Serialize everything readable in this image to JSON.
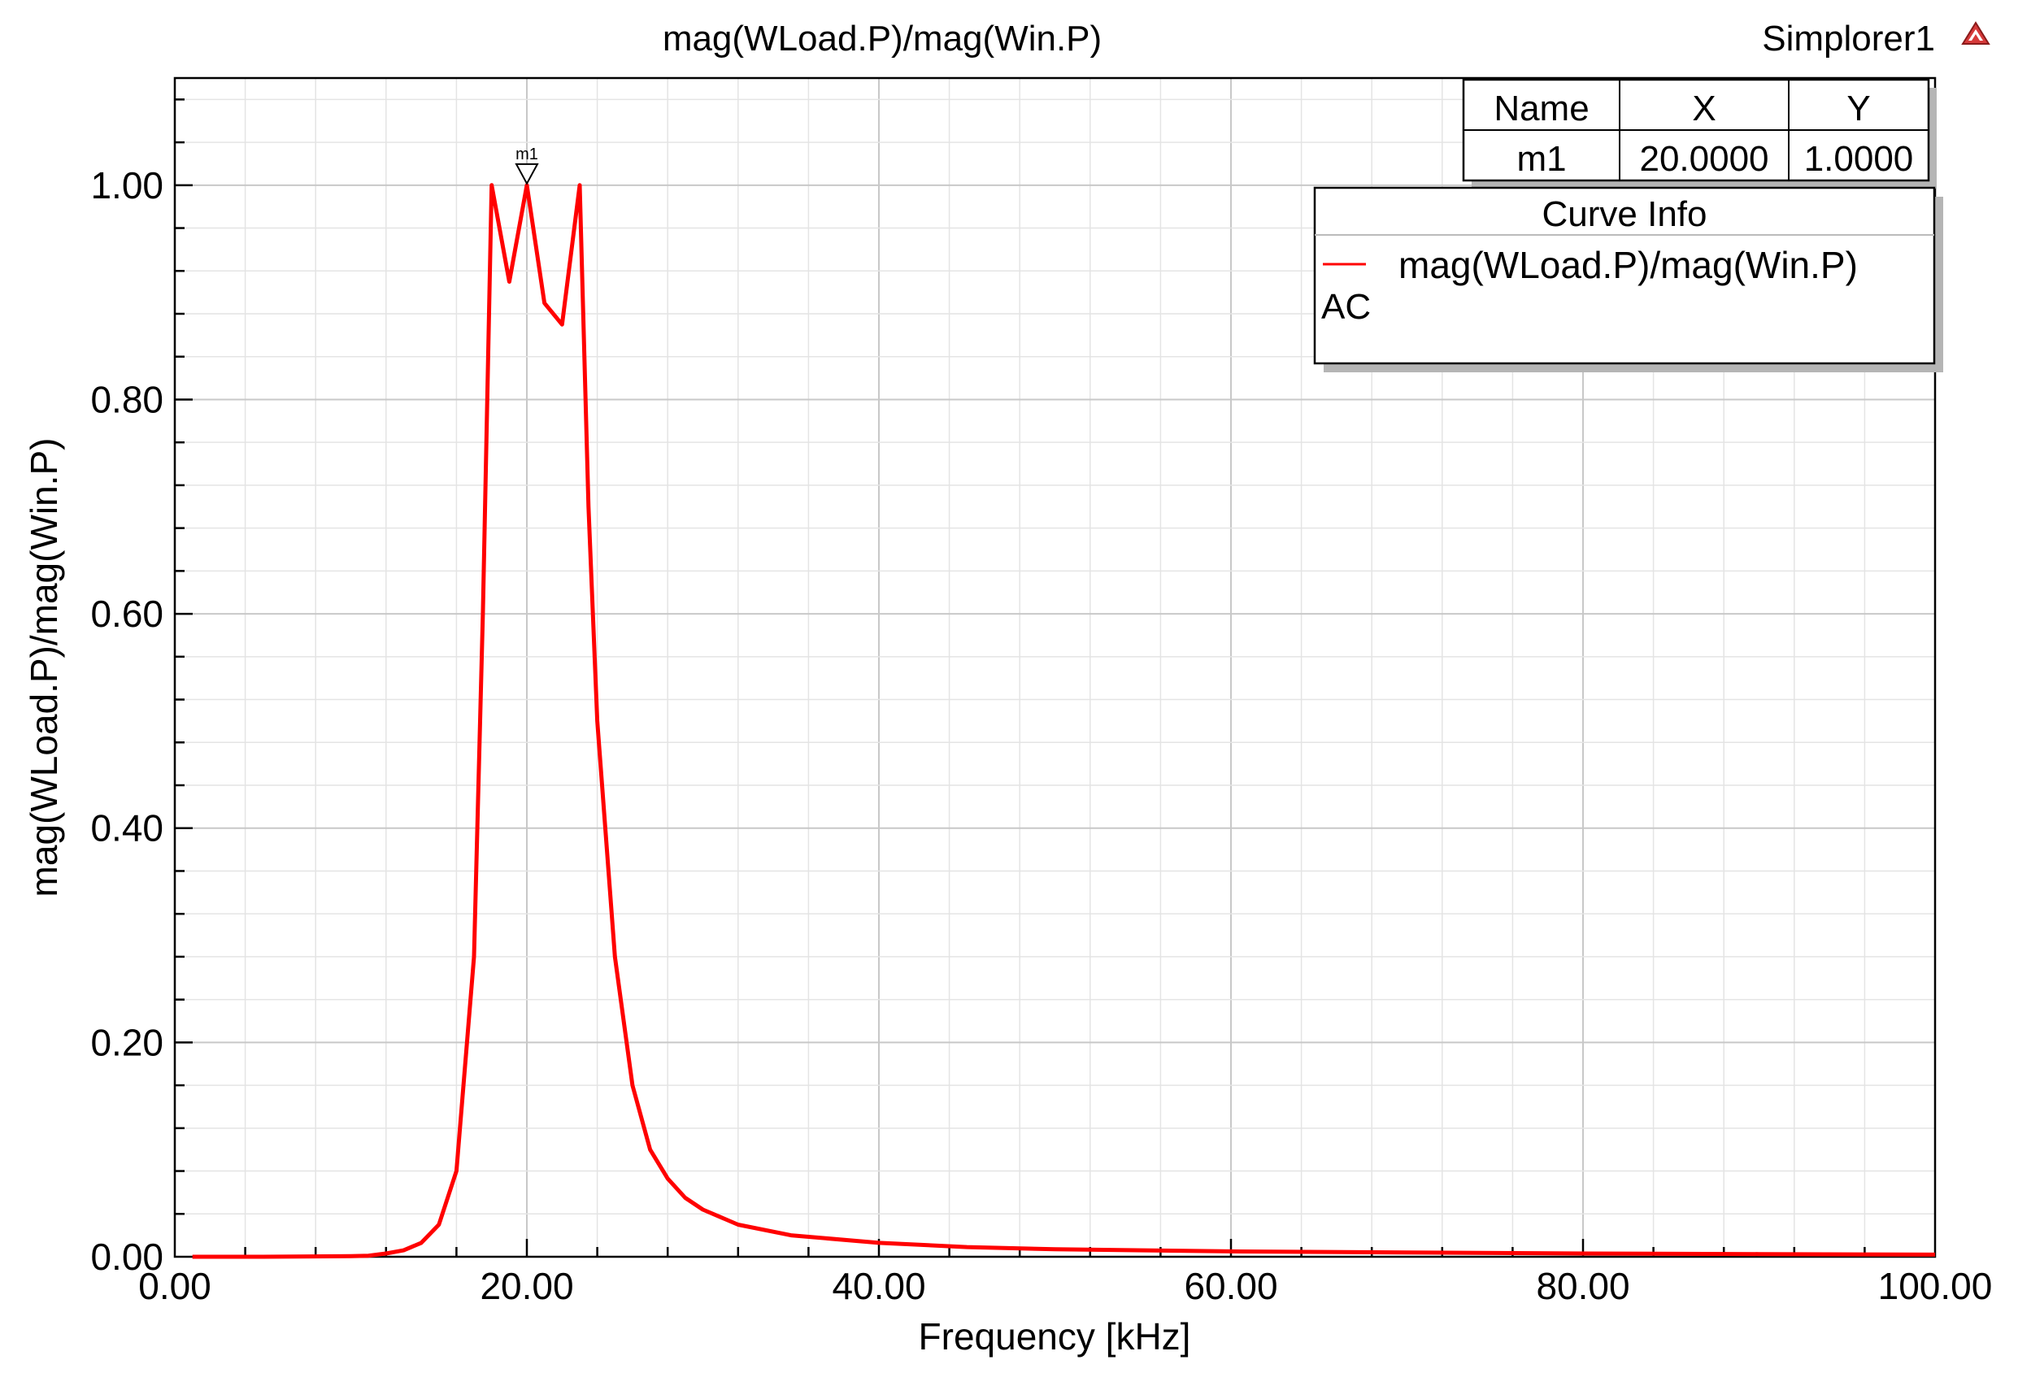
{
  "header": {
    "title": "mag(WLoad.P)/mag(Win.P)",
    "design_name": "Simplorer1",
    "design_icon": "warning-triangle-icon"
  },
  "marker_table": {
    "headers": [
      "Name",
      "X",
      "Y"
    ],
    "rows": [
      [
        "m1",
        "20.0000",
        "1.0000"
      ]
    ]
  },
  "legend": {
    "title": "Curve Info",
    "entries": [
      {
        "label": "mag(WLoad.P)/mag(Win.P)",
        "sub": "AC",
        "color": "#ff0000"
      }
    ]
  },
  "marker": {
    "label": "m1",
    "x": 20,
    "y": 1.0
  },
  "chart_data": {
    "type": "line",
    "title": "mag(WLoad.P)/mag(Win.P)",
    "xlabel": "Frequency [kHz]",
    "ylabel": "mag(WLoad.P)/mag(Win.P)",
    "xlim": [
      0,
      100
    ],
    "ylim": [
      0,
      1.1
    ],
    "x_ticks": [
      0,
      20,
      40,
      60,
      80,
      100
    ],
    "x_tick_labels": [
      "0.00",
      "20.00",
      "40.00",
      "60.00",
      "80.00",
      "100.00"
    ],
    "y_ticks": [
      0,
      0.2,
      0.4,
      0.6,
      0.8,
      1.0
    ],
    "y_tick_labels": [
      "0.00",
      "0.20",
      "0.40",
      "0.60",
      "0.80",
      "1.00"
    ],
    "grid": true,
    "legend_position": "top-right",
    "series": [
      {
        "name": "mag(WLoad.P)/mag(Win.P)",
        "color": "#ff0000",
        "x": [
          1,
          5,
          10,
          11,
          12,
          13,
          14,
          15,
          16,
          17,
          17.5,
          18,
          19,
          20,
          21,
          22,
          23,
          23.5,
          24,
          25,
          26,
          27,
          28,
          29,
          30,
          32,
          35,
          40,
          45,
          50,
          60,
          70,
          80,
          90,
          100
        ],
        "y": [
          0.0,
          0.0,
          0.0005,
          0.001,
          0.003,
          0.006,
          0.013,
          0.03,
          0.08,
          0.28,
          0.6,
          1.0,
          0.91,
          1.0,
          0.89,
          0.87,
          1.0,
          0.7,
          0.5,
          0.28,
          0.16,
          0.1,
          0.073,
          0.055,
          0.044,
          0.03,
          0.02,
          0.013,
          0.009,
          0.007,
          0.005,
          0.004,
          0.003,
          0.0025,
          0.002
        ]
      }
    ]
  }
}
